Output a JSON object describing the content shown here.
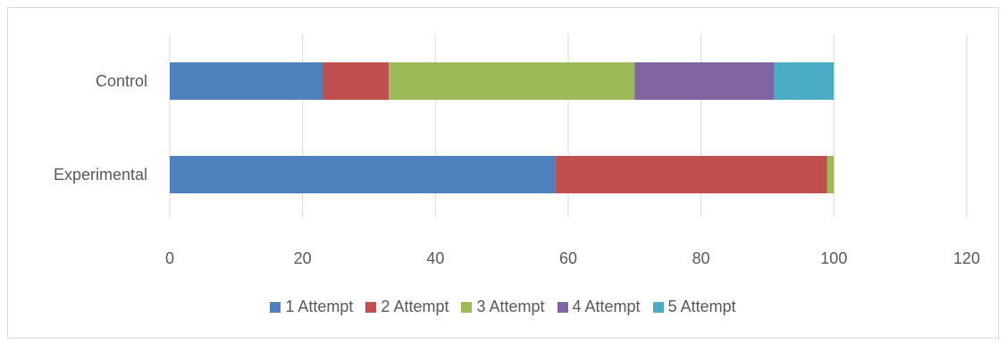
{
  "chart_data": {
    "type": "bar",
    "orientation": "horizontal",
    "stacked": true,
    "categories": [
      "Control",
      "Experimental"
    ],
    "series": [
      {
        "name": "1 Attempt",
        "values": [
          23,
          58
        ],
        "color": "#4F81BD"
      },
      {
        "name": "2 Attempt",
        "values": [
          10,
          41
        ],
        "color": "#C0504D"
      },
      {
        "name": "3 Attempt",
        "values": [
          37,
          1
        ],
        "color": "#9BBB59"
      },
      {
        "name": "4 Attempt",
        "values": [
          21,
          0
        ],
        "color": "#8064A2"
      },
      {
        "name": "5 Attempt",
        "values": [
          9,
          0
        ],
        "color": "#4BACC6"
      }
    ],
    "xlim": [
      0,
      120
    ],
    "xticks": [
      0,
      20,
      40,
      60,
      80,
      100,
      120
    ],
    "grid": "vertical",
    "legend": "bottom",
    "title": "",
    "xlabel": "",
    "ylabel": ""
  }
}
